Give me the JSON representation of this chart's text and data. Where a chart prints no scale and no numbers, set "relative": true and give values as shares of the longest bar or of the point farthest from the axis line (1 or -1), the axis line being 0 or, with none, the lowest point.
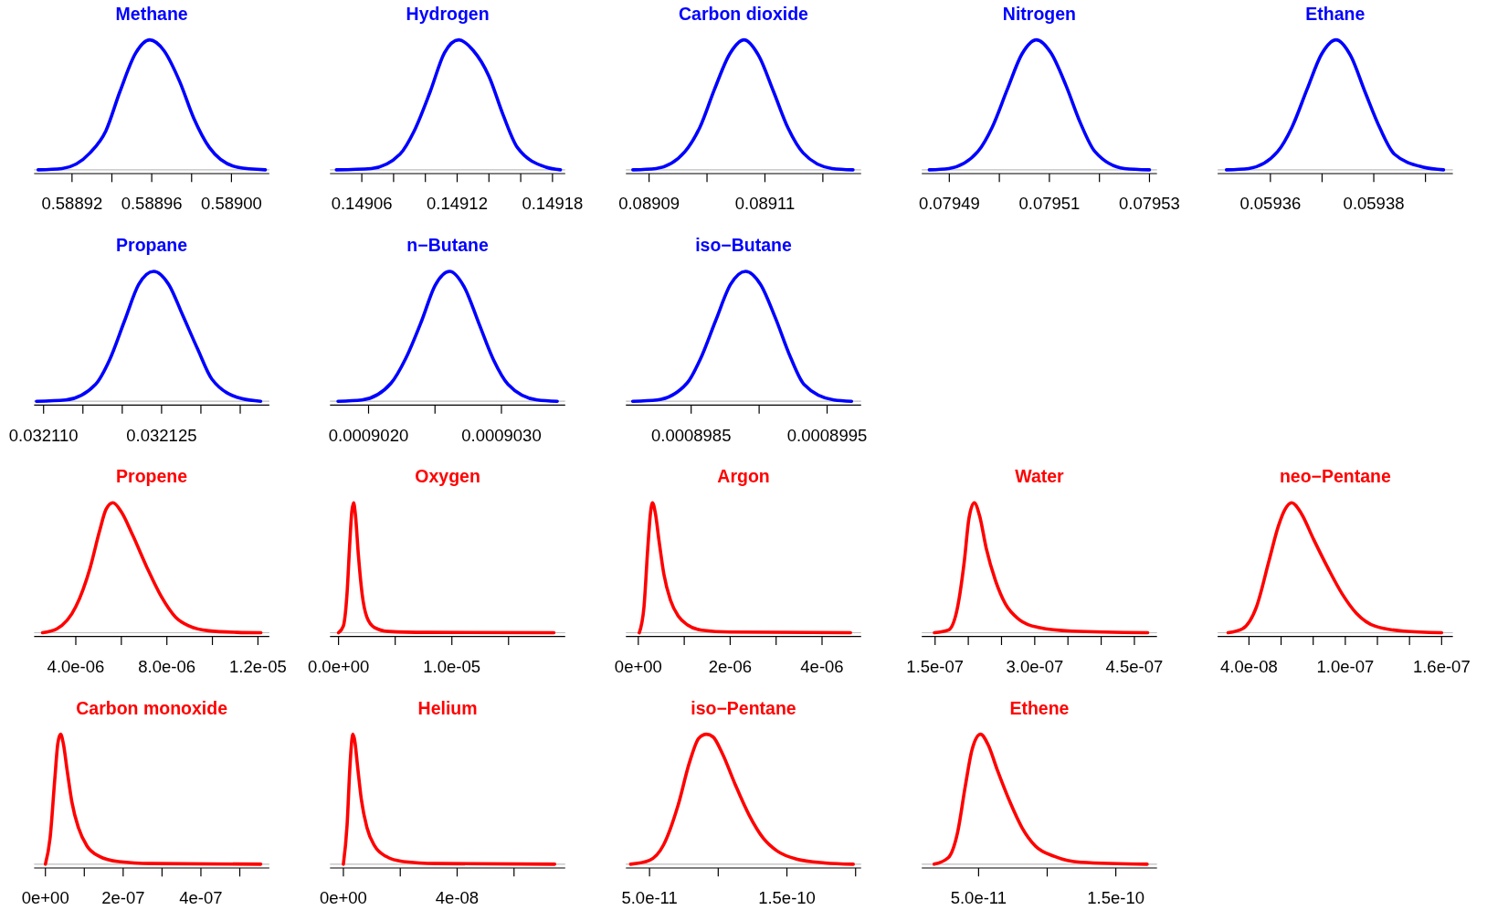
{
  "chart_data": [
    {
      "type": "line",
      "title": "Methane",
      "relative": true,
      "xlim": [
        0.588901,
        0.589019
      ],
      "xticks": [
        {
          "value": 0.58892,
          "label": "0.58892"
        },
        {
          "value": 0.58894,
          "label": null
        },
        {
          "value": 0.58896,
          "label": "0.58896"
        },
        {
          "value": 0.58898,
          "label": null
        },
        {
          "value": 0.589,
          "label": "0.58900"
        }
      ],
      "ref_lines": [
        {
          "axis": "y",
          "value": 0,
          "color": "#bebebe"
        }
      ],
      "series": [
        {
          "color": "#0000ff",
          "x": [
            0.588903,
            0.588915,
            0.588929,
            0.588937,
            0.588944,
            0.588952,
            0.588959,
            0.588966,
            0.588974,
            0.588981,
            0.588989,
            0.589003,
            0.589017
          ],
          "values": [
            0,
            0.01,
            0.13,
            0.3,
            0.6,
            0.9,
            1,
            0.92,
            0.68,
            0.4,
            0.17,
            0.02,
            0
          ]
        }
      ]
    },
    {
      "type": "line",
      "title": "Hydrogen",
      "relative": true,
      "xlim": [
        0.14904,
        0.149188
      ],
      "xticks": [
        {
          "value": 0.14906,
          "label": "0.14906"
        },
        {
          "value": 0.14908,
          "label": null
        },
        {
          "value": 0.1491,
          "label": null
        },
        {
          "value": 0.14912,
          "label": "0.14912"
        },
        {
          "value": 0.14914,
          "label": null
        },
        {
          "value": 0.14916,
          "label": null
        },
        {
          "value": 0.14918,
          "label": "0.14918"
        }
      ],
      "ref_lines": [
        {
          "axis": "y",
          "value": 0,
          "color": "#bebebe"
        }
      ],
      "series": [
        {
          "color": "#0000ff",
          "x": [
            0.149044,
            0.149066,
            0.149084,
            0.149093,
            0.149103,
            0.149112,
            0.149121,
            0.14913,
            0.14914,
            0.149149,
            0.149158,
            0.149176,
            0.149185
          ],
          "values": [
            0,
            0.01,
            0.12,
            0.3,
            0.6,
            0.9,
            1,
            0.92,
            0.72,
            0.42,
            0.17,
            0.02,
            0
          ]
        }
      ]
    },
    {
      "type": "line",
      "title": "Carbon dioxide",
      "relative": true,
      "xlim": [
        0.089086,
        0.0891266
      ],
      "xticks": [
        {
          "value": 0.08909,
          "label": "0.08909"
        },
        {
          "value": 0.0891,
          "label": null
        },
        {
          "value": 0.08911,
          "label": "0.08911"
        },
        {
          "value": 0.08912,
          "label": null
        }
      ],
      "ref_lines": [
        {
          "axis": "y",
          "value": 0,
          "color": "#bebebe"
        }
      ],
      "series": [
        {
          "color": "#0000ff",
          "x": [
            0.0890872,
            0.0890912,
            0.0890962,
            0.0890988,
            0.0891013,
            0.0891039,
            0.0891064,
            0.0891089,
            0.0891115,
            0.089114,
            0.0891166,
            0.0891216,
            0.0891252
          ],
          "values": [
            0,
            0.01,
            0.14,
            0.33,
            0.62,
            0.89,
            1,
            0.88,
            0.6,
            0.32,
            0.13,
            0.01,
            0
          ]
        }
      ]
    },
    {
      "type": "line",
      "title": "Nitrogen",
      "relative": true,
      "xlim": [
        0.0794845,
        0.0795315
      ],
      "xticks": [
        {
          "value": 0.07949,
          "label": "0.07949"
        },
        {
          "value": 0.0795,
          "label": null
        },
        {
          "value": 0.07951,
          "label": "0.07951"
        },
        {
          "value": 0.07952,
          "label": null
        },
        {
          "value": 0.07953,
          "label": "0.07953"
        }
      ],
      "ref_lines": [
        {
          "axis": "y",
          "value": 0,
          "color": "#bebebe"
        }
      ],
      "series": [
        {
          "color": "#0000ff",
          "x": [
            0.079486,
            0.0794899,
            0.0794957,
            0.0794986,
            0.0795016,
            0.0795045,
            0.0795074,
            0.0795103,
            0.0795133,
            0.0795162,
            0.0795191,
            0.079525,
            0.07953
          ],
          "values": [
            0,
            0.01,
            0.14,
            0.33,
            0.62,
            0.89,
            1,
            0.9,
            0.65,
            0.36,
            0.14,
            0.01,
            0
          ]
        }
      ]
    },
    {
      "type": "line",
      "title": "Ethane",
      "relative": true,
      "xlim": [
        0.0593498,
        0.0593953
      ],
      "xticks": [
        {
          "value": 0.05936,
          "label": "0.05936"
        },
        {
          "value": 0.05937,
          "label": null
        },
        {
          "value": 0.05938,
          "label": "0.05938"
        },
        {
          "value": 0.05939,
          "label": null
        }
      ],
      "ref_lines": [
        {
          "axis": "y",
          "value": 0,
          "color": "#bebebe"
        }
      ],
      "series": [
        {
          "color": "#0000ff",
          "x": [
            0.0593515,
            0.0593558,
            0.0593614,
            0.0593642,
            0.0593671,
            0.0593699,
            0.0593727,
            0.0593755,
            0.0593783,
            0.0593812,
            0.059384,
            0.0593896,
            0.0593935
          ],
          "values": [
            0,
            0.01,
            0.14,
            0.33,
            0.62,
            0.89,
            1,
            0.88,
            0.6,
            0.32,
            0.12,
            0.02,
            0
          ]
        }
      ]
    },
    {
      "type": "line",
      "title": "Propane",
      "relative": true,
      "xlim": [
        0.0321088,
        0.0321387
      ],
      "xticks": [
        {
          "value": 0.03211,
          "label": "0.032110"
        },
        {
          "value": 0.032115,
          "label": null
        },
        {
          "value": 0.03212,
          "label": null
        },
        {
          "value": 0.032125,
          "label": "0.032125"
        },
        {
          "value": 0.03213,
          "label": null
        },
        {
          "value": 0.032135,
          "label": null
        }
      ],
      "ref_lines": [
        {
          "axis": "y",
          "value": 0,
          "color": "#bebebe"
        }
      ],
      "series": [
        {
          "color": "#0000ff",
          "x": [
            0.0321091,
            0.0321128,
            0.0321166,
            0.0321184,
            0.0321203,
            0.0321221,
            0.032124,
            0.0321259,
            0.0321277,
            0.0321296,
            0.0321314,
            0.0321352,
            0.0321376
          ],
          "values": [
            0,
            0.01,
            0.13,
            0.32,
            0.62,
            0.9,
            1,
            0.9,
            0.66,
            0.4,
            0.17,
            0.02,
            0
          ]
        }
      ]
    },
    {
      "type": "line",
      "title": "n−Butane",
      "relative": true,
      "xlim": [
        0.00090171,
        0.00090348
      ],
      "xticks": [
        {
          "value": 0.000902,
          "label": "0.0009020"
        },
        {
          "value": 0.0009025,
          "label": null
        },
        {
          "value": 0.000903,
          "label": "0.0009030"
        }
      ],
      "ref_lines": [
        {
          "axis": "y",
          "value": 0,
          "color": "#bebebe"
        }
      ],
      "series": [
        {
          "color": "#0000ff",
          "x": [
            0.00090177,
            0.00090195,
            0.00090217,
            0.00090228,
            0.0009024,
            0.0009025,
            0.00090261,
            0.00090272,
            0.00090283,
            0.00090294,
            0.00090305,
            0.00090327,
            0.00090342
          ],
          "values": [
            0,
            0.01,
            0.14,
            0.33,
            0.62,
            0.89,
            1,
            0.88,
            0.6,
            0.32,
            0.13,
            0.01,
            0
          ]
        }
      ]
    },
    {
      "type": "line",
      "title": "iso−Butane",
      "relative": true,
      "xlim": [
        0.00089802,
        0.00089975
      ],
      "xticks": [
        {
          "value": 0.0008985,
          "label": "0.0008985"
        },
        {
          "value": 0.000899,
          "label": null
        },
        {
          "value": 0.0008995,
          "label": "0.0008995"
        }
      ],
      "ref_lines": [
        {
          "axis": "y",
          "value": 0,
          "color": "#bebebe"
        }
      ],
      "series": [
        {
          "color": "#0000ff",
          "x": [
            0.00089807,
            0.00089825,
            0.00089847,
            0.00089857,
            0.00089868,
            0.00089879,
            0.0008989,
            0.00089901,
            0.00089912,
            0.00089923,
            0.00089933,
            0.00089955,
            0.00089968
          ],
          "values": [
            0,
            0.01,
            0.14,
            0.33,
            0.62,
            0.9,
            1,
            0.9,
            0.64,
            0.34,
            0.13,
            0.01,
            0
          ]
        }
      ]
    },
    {
      "type": "line",
      "title": "Propene",
      "relative": true,
      "xlim": [
        2.17e-06,
        1.25e-05
      ],
      "xticks": [
        {
          "value": 4e-06,
          "label": "4.0e-06"
        },
        {
          "value": 6e-06,
          "label": null
        },
        {
          "value": 8e-06,
          "label": "8.0e-06"
        },
        {
          "value": 1e-05,
          "label": null
        },
        {
          "value": 1.2e-05,
          "label": "1.2e-05"
        }
      ],
      "ref_lines": [
        {
          "axis": "y",
          "value": 0,
          "color": "#bebebe"
        }
      ],
      "series": [
        {
          "color": "#ff0000",
          "x": [
            2.54e-06,
            3.17e-06,
            4e-06,
            4.63e-06,
            5.04e-06,
            5.33e-06,
            5.63e-06,
            6e-06,
            6.5e-06,
            7.13e-06,
            7.75e-06,
            8.38e-06,
            9e-06,
            9.83e-06,
            1.108e-05,
            1.213e-05
          ],
          "values": [
            0,
            0.03,
            0.2,
            0.5,
            0.78,
            0.95,
            1,
            0.93,
            0.75,
            0.5,
            0.28,
            0.12,
            0.05,
            0.015,
            0.003,
            0
          ]
        }
      ]
    },
    {
      "type": "line",
      "title": "Oxygen",
      "relative": true,
      "xlim": [
        -7.5e-07,
        2e-05
      ],
      "xticks": [
        {
          "value": 0,
          "label": "0.0e+00"
        },
        {
          "value": 5e-06,
          "label": null
        },
        {
          "value": 1e-05,
          "label": "1.0e-05"
        },
        {
          "value": 1.5e-05,
          "label": null
        }
      ],
      "ref_lines": [
        {
          "axis": "y",
          "value": 0,
          "color": "#bebebe"
        }
      ],
      "series": [
        {
          "color": "#ff0000",
          "x": [
            0,
            4.2e-07,
            7.5e-07,
            1e-06,
            1.17e-06,
            1.33e-06,
            1.5e-06,
            1.75e-06,
            2.08e-06,
            2.5e-06,
            3.17e-06,
            4.42e-06,
            7.75e-06,
            1.9e-05
          ],
          "values": [
            0,
            0.05,
            0.3,
            0.7,
            0.93,
            1,
            0.9,
            0.6,
            0.3,
            0.12,
            0.04,
            0.01,
            0.003,
            0
          ]
        }
      ]
    },
    {
      "type": "line",
      "title": "Argon",
      "relative": true,
      "xlim": [
        -2.7e-07,
        4.85e-06
      ],
      "xticks": [
        {
          "value": 0,
          "label": "0e+00"
        },
        {
          "value": 1e-06,
          "label": null
        },
        {
          "value": 2e-06,
          "label": "2e-06"
        },
        {
          "value": 3e-06,
          "label": null
        },
        {
          "value": 4e-06,
          "label": "4e-06"
        }
      ],
      "ref_lines": [
        {
          "axis": "y",
          "value": 0,
          "color": "#bebebe"
        }
      ],
      "series": [
        {
          "color": "#ff0000",
          "x": [
            2.1e-08,
            1.24e-07,
            2.06e-07,
            2.68e-07,
            3.09e-07,
            3.71e-07,
            4.54e-07,
            5.57e-07,
            7.01e-07,
            8.66e-07,
            1.072e-06,
            1.381e-06,
            2e-06,
            4.62e-06
          ],
          "values": [
            0,
            0.2,
            0.65,
            0.93,
            1,
            0.92,
            0.7,
            0.45,
            0.25,
            0.13,
            0.06,
            0.02,
            0.005,
            0
          ]
        }
      ]
    },
    {
      "type": "line",
      "title": "Water",
      "relative": true,
      "xlim": [
        1.3e-07,
        4.84e-07
      ],
      "xticks": [
        {
          "value": 1.5e-07,
          "label": "1.5e-07"
        },
        {
          "value": 2e-07,
          "label": null
        },
        {
          "value": 2.5e-07,
          "label": null
        },
        {
          "value": 3e-07,
          "label": "3.0e-07"
        },
        {
          "value": 3.5e-07,
          "label": null
        },
        {
          "value": 4e-07,
          "label": null
        },
        {
          "value": 4.5e-07,
          "label": "4.5e-07"
        }
      ],
      "ref_lines": [
        {
          "axis": "y",
          "value": 0,
          "color": "#bebebe"
        }
      ],
      "series": [
        {
          "color": "#ff0000",
          "x": [
            1.49e-07,
            1.7e-07,
            1.84e-07,
            1.94e-07,
            2.01e-07,
            2.09e-07,
            2.17e-07,
            2.27e-07,
            2.41e-07,
            2.56e-07,
            2.77e-07,
            3.06e-07,
            3.56e-07,
            4.7e-07
          ],
          "values": [
            0,
            0.02,
            0.2,
            0.55,
            0.88,
            1,
            0.9,
            0.65,
            0.4,
            0.22,
            0.1,
            0.04,
            0.012,
            0
          ]
        }
      ]
    },
    {
      "type": "line",
      "title": "neo−Pentane",
      "relative": true,
      "xlim": [
        2.05e-08,
        1.67e-07
      ],
      "xticks": [
        {
          "value": 4e-08,
          "label": "4.0e-08"
        },
        {
          "value": 6e-08,
          "label": null
        },
        {
          "value": 8e-08,
          "label": null
        },
        {
          "value": 1e-07,
          "label": "1.0e-07"
        },
        {
          "value": 1.2e-07,
          "label": null
        },
        {
          "value": 1.4e-07,
          "label": null
        },
        {
          "value": 1.6e-07,
          "label": "1.6e-07"
        }
      ],
      "ref_lines": [
        {
          "axis": "y",
          "value": 0,
          "color": "#bebebe"
        }
      ],
      "series": [
        {
          "color": "#ff0000",
          "x": [
            2.7e-08,
            3.59e-08,
            4.47e-08,
            5.24e-08,
            5.83e-08,
            6.25e-08,
            6.66e-08,
            7.25e-08,
            8.02e-08,
            8.91e-08,
            9.8e-08,
            1.069e-07,
            1.187e-07,
            1.364e-07,
            1.6e-07
          ],
          "values": [
            0,
            0.03,
            0.2,
            0.55,
            0.82,
            0.95,
            1,
            0.92,
            0.72,
            0.5,
            0.3,
            0.15,
            0.05,
            0.012,
            0
          ]
        }
      ]
    },
    {
      "type": "line",
      "title": "Carbon monoxide",
      "relative": true,
      "xlim": [
        -2.9e-08,
        5.76e-07
      ],
      "xticks": [
        {
          "value": 0,
          "label": "0e+00"
        },
        {
          "value": 1e-07,
          "label": null
        },
        {
          "value": 2e-07,
          "label": "2e-07"
        },
        {
          "value": 3e-07,
          "label": null
        },
        {
          "value": 4e-07,
          "label": "4e-07"
        },
        {
          "value": 5e-07,
          "label": null
        }
      ],
      "ref_lines": [
        {
          "axis": "y",
          "value": 0,
          "color": "#bebebe"
        }
      ],
      "series": [
        {
          "color": "#ff0000",
          "x": [
            0,
            1.2e-08,
            2.4e-08,
            3.2e-08,
            3.9e-08,
            4.6e-08,
            5.6e-08,
            6.8e-08,
            8.5e-08,
            1.07e-07,
            1.39e-07,
            1.88e-07,
            2.73e-07,
            5.54e-07
          ],
          "values": [
            0,
            0.2,
            0.65,
            0.93,
            1,
            0.93,
            0.72,
            0.48,
            0.28,
            0.14,
            0.06,
            0.02,
            0.005,
            0
          ]
        }
      ]
    },
    {
      "type": "line",
      "title": "Helium",
      "relative": true,
      "xlim": [
        -4.7e-09,
        7.8e-08
      ],
      "xticks": [
        {
          "value": 0,
          "label": "0e+00"
        },
        {
          "value": 2e-08,
          "label": null
        },
        {
          "value": 4e-08,
          "label": "4e-08"
        },
        {
          "value": 6e-08,
          "label": null
        }
      ],
      "ref_lines": [
        {
          "axis": "y",
          "value": 0,
          "color": "#bebebe"
        }
      ],
      "series": [
        {
          "color": "#ff0000",
          "x": [
            0,
            1.3e-09,
            2.3e-09,
            3e-09,
            3.3e-09,
            4e-09,
            5e-09,
            6.3e-09,
            8.3e-09,
            1.1e-08,
            1.5e-08,
            2.1e-08,
            3.27e-08,
            7.43e-08
          ],
          "values": [
            0,
            0.3,
            0.75,
            0.96,
            1,
            0.95,
            0.75,
            0.5,
            0.28,
            0.14,
            0.06,
            0.02,
            0.005,
            0
          ]
        }
      ]
    },
    {
      "type": "line",
      "title": "iso−Pentane",
      "relative": true,
      "xlim": [
        3.28e-11,
        2.04e-10
      ],
      "xticks": [
        {
          "value": 5e-11,
          "label": "5.0e-11"
        },
        {
          "value": 1e-10,
          "label": null
        },
        {
          "value": 1.5e-10,
          "label": "1.5e-10"
        },
        {
          "value": 2e-10,
          "label": null
        }
      ],
      "ref_lines": [
        {
          "axis": "y",
          "value": 0,
          "color": "#bebebe"
        }
      ],
      "series": [
        {
          "color": "#ff0000",
          "x": [
            3.62e-11,
            5e-11,
            6.03e-11,
            7.07e-11,
            7.9e-11,
            8.59e-11,
            9.14e-11,
            9.62e-11,
            1.031e-10,
            1.121e-10,
            1.224e-10,
            1.328e-10,
            1.431e-10,
            1.569e-10,
            1.776e-10,
            1.983e-10
          ],
          "values": [
            0,
            0.03,
            0.15,
            0.45,
            0.78,
            0.97,
            1,
            0.98,
            0.85,
            0.62,
            0.38,
            0.2,
            0.1,
            0.04,
            0.01,
            0
          ]
        }
      ]
    },
    {
      "type": "line",
      "title": "Ethene",
      "relative": true,
      "xlim": [
        8.6e-12,
        1.8e-10
      ],
      "xticks": [
        {
          "value": 5e-11,
          "label": "5.0e-11"
        },
        {
          "value": 1e-10,
          "label": null
        },
        {
          "value": 1.5e-10,
          "label": "1.5e-10"
        }
      ],
      "ref_lines": [
        {
          "axis": "y",
          "value": 0,
          "color": "#bebebe"
        }
      ],
      "series": [
        {
          "color": "#ff0000",
          "x": [
            1.76e-11,
            2.79e-11,
            3.48e-11,
            4.03e-11,
            4.52e-11,
            5.14e-11,
            5.69e-11,
            6.38e-11,
            7.28e-11,
            8.17e-11,
            9.14e-11,
            1.054e-10,
            1.245e-10,
            1.728e-10
          ],
          "values": [
            0,
            0.05,
            0.25,
            0.6,
            0.88,
            1,
            0.92,
            0.72,
            0.48,
            0.28,
            0.14,
            0.06,
            0.015,
            0
          ]
        }
      ]
    }
  ]
}
